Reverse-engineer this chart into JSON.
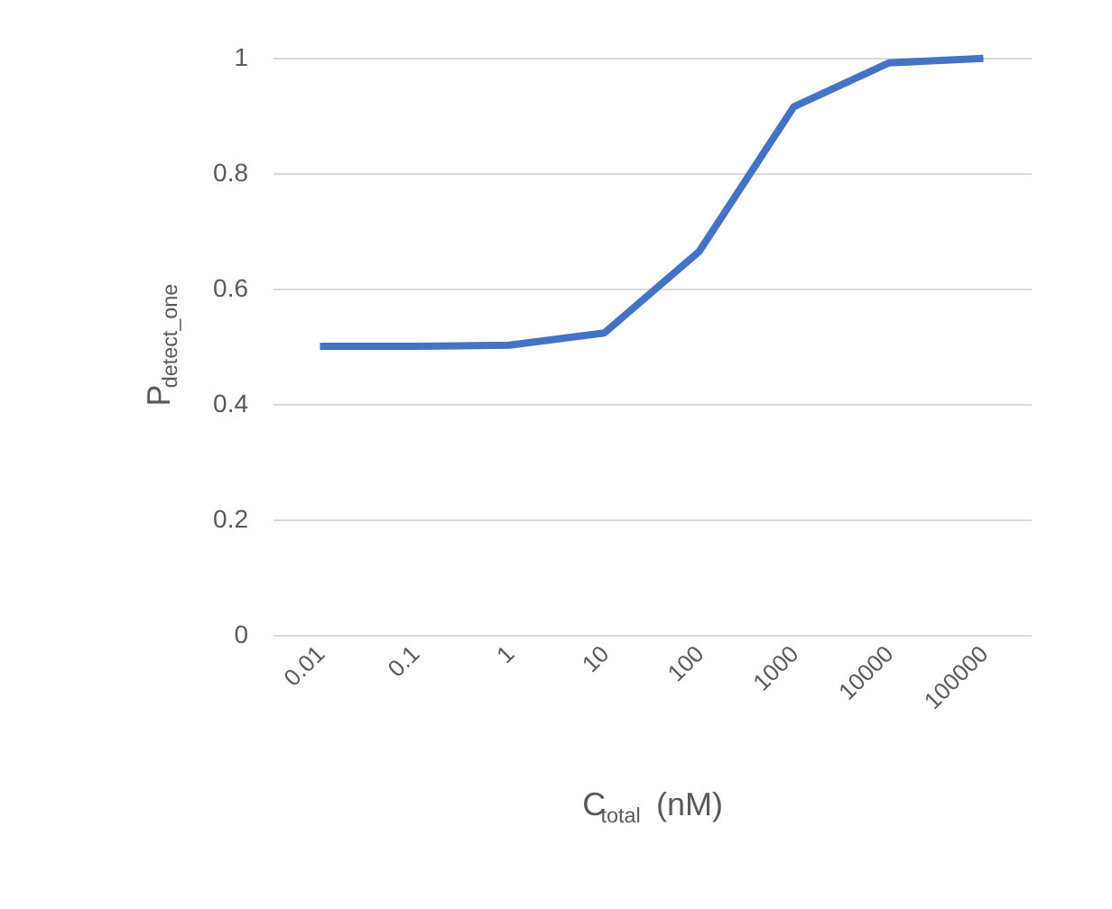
{
  "chart_data": {
    "type": "line",
    "xlabel": "C$_{total}$ (nM)",
    "ylabel": "P$_{detect_one}$",
    "categories": [
      "0.01",
      "0.1",
      "1",
      "10",
      "100",
      "1000",
      "10000",
      "100000"
    ],
    "series": [
      {
        "color": "#4472c4",
        "values": [
          0.5,
          0.5,
          0.502,
          0.523,
          0.664,
          0.915,
          0.991,
          0.999
        ]
      }
    ],
    "ylim": [
      0,
      1
    ],
    "yticks": [
      0,
      0.2,
      0.4,
      0.6,
      0.8,
      1
    ],
    "grid": "y",
    "marker": "none",
    "line_style": "solid"
  }
}
